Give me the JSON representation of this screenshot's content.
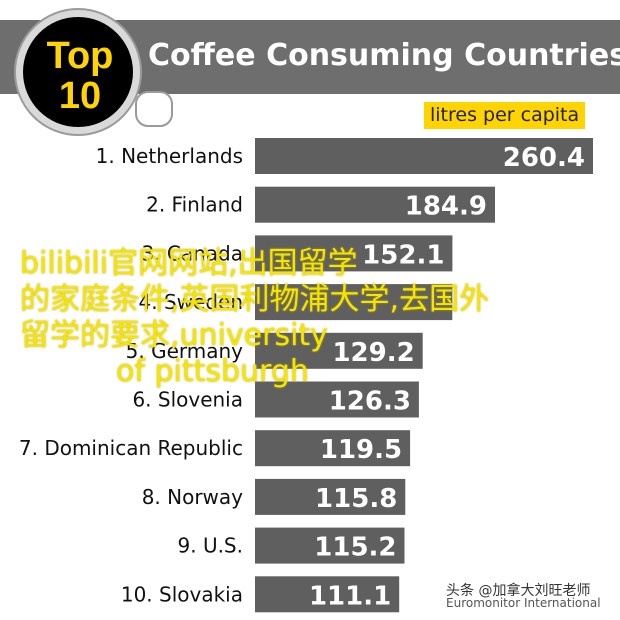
{
  "badge": {
    "line1": "Top",
    "line2": "10"
  },
  "chart_data": {
    "type": "bar",
    "orientation": "horizontal",
    "title": "Coffee Consuming Countries",
    "unit": "litres per capita",
    "categories": [
      "1. Netherlands",
      "2. Finland",
      "3. Canada",
      "4. Sweden",
      "5. Germany",
      "6. Slovenia",
      "7. Dominican Republic",
      "8. Norway",
      "9. U.S.",
      "10. Slovakia"
    ],
    "values": [
      260.4,
      184.9,
      152.1,
      152.0,
      129.2,
      126.3,
      119.5,
      115.8,
      115.2,
      111.1
    ],
    "value_labels": [
      "260.4",
      "184.9",
      "152.1",
      "",
      "129.2",
      "126.3",
      "119.5",
      "115.8",
      "115.2",
      "111.1"
    ],
    "bar_color": "#5f5f5f",
    "header_color": "#6e6e6e",
    "accent_color": "#ffd400",
    "source": "Euromonitor International"
  },
  "overlay": {
    "credit": "头条 @加拿大刘旺老师",
    "watermark_lines": [
      "bilibili官网网站,出国留学",
      "的家庭条件,英国利物浦大学,去国外",
      "留学的要求,university",
      "of pittsburgh"
    ]
  }
}
